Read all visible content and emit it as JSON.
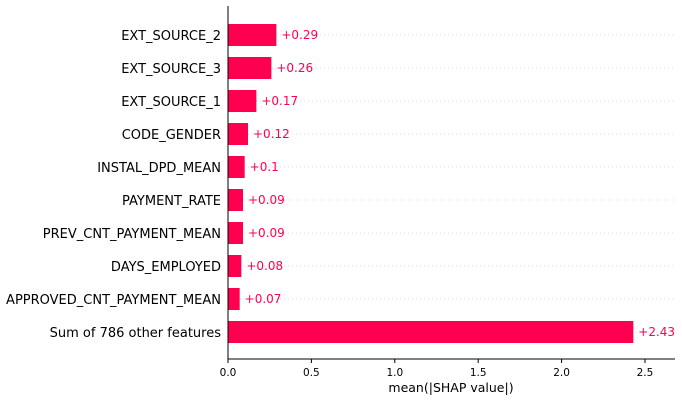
{
  "chart_data": {
    "type": "bar",
    "orientation": "horizontal",
    "categories": [
      "EXT_SOURCE_2",
      "EXT_SOURCE_3",
      "EXT_SOURCE_1",
      "CODE_GENDER",
      "INSTAL_DPD_MEAN",
      "PAYMENT_RATE",
      "PREV_CNT_PAYMENT_MEAN",
      "DAYS_EMPLOYED",
      "APPROVED_CNT_PAYMENT_MEAN",
      "Sum of 786 other features"
    ],
    "values": [
      0.29,
      0.26,
      0.17,
      0.12,
      0.1,
      0.09,
      0.09,
      0.08,
      0.07,
      2.43
    ],
    "value_labels": [
      "+0.29",
      "+0.26",
      "+0.17",
      "+0.12",
      "+0.1",
      "+0.09",
      "+0.09",
      "+0.08",
      "+0.07",
      "+2.43"
    ],
    "title": "",
    "xlabel": "mean(|SHAP value|)",
    "ylabel": "",
    "xlim": [
      0,
      2.68
    ],
    "xticks": [
      0.0,
      0.5,
      1.0,
      1.5,
      2.0,
      2.5
    ],
    "xtick_labels": [
      "0.0",
      "0.5",
      "1.0",
      "1.5",
      "2.0",
      "2.5"
    ],
    "grid": "horizontal dotted row guides",
    "legend": "none",
    "bar_color": "#ff0051",
    "label_color": "#ff0051",
    "grid_color": "#dddddd",
    "axis_color": "#000000"
  }
}
